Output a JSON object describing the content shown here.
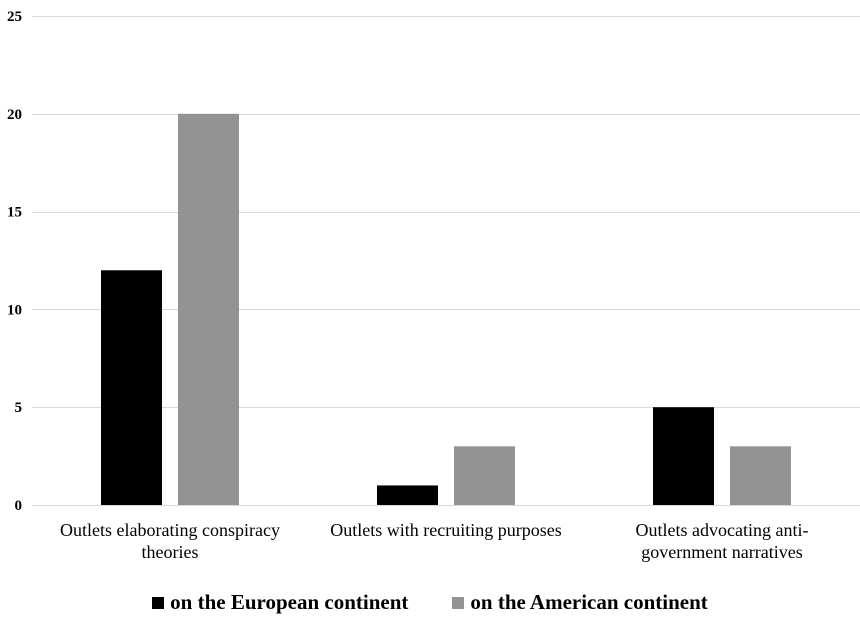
{
  "chart_data": {
    "type": "bar",
    "categories": [
      [
        "Outlets elaborating conspiracy",
        "theories"
      ],
      [
        "Outlets with recruiting purposes"
      ],
      [
        "Outlets advocating anti-",
        "government narratives"
      ]
    ],
    "series": [
      {
        "name": "on the European continent",
        "color": "#000000",
        "values": [
          12,
          1,
          5
        ]
      },
      {
        "name": "on the American continent",
        "color": "#939393",
        "values": [
          20,
          3,
          3
        ]
      }
    ],
    "ylim": [
      0,
      25
    ],
    "yticks": [
      0,
      5,
      10,
      15,
      20,
      25
    ],
    "grid": true,
    "legend_position": "bottom",
    "title": "",
    "xlabel": "",
    "ylabel": ""
  }
}
